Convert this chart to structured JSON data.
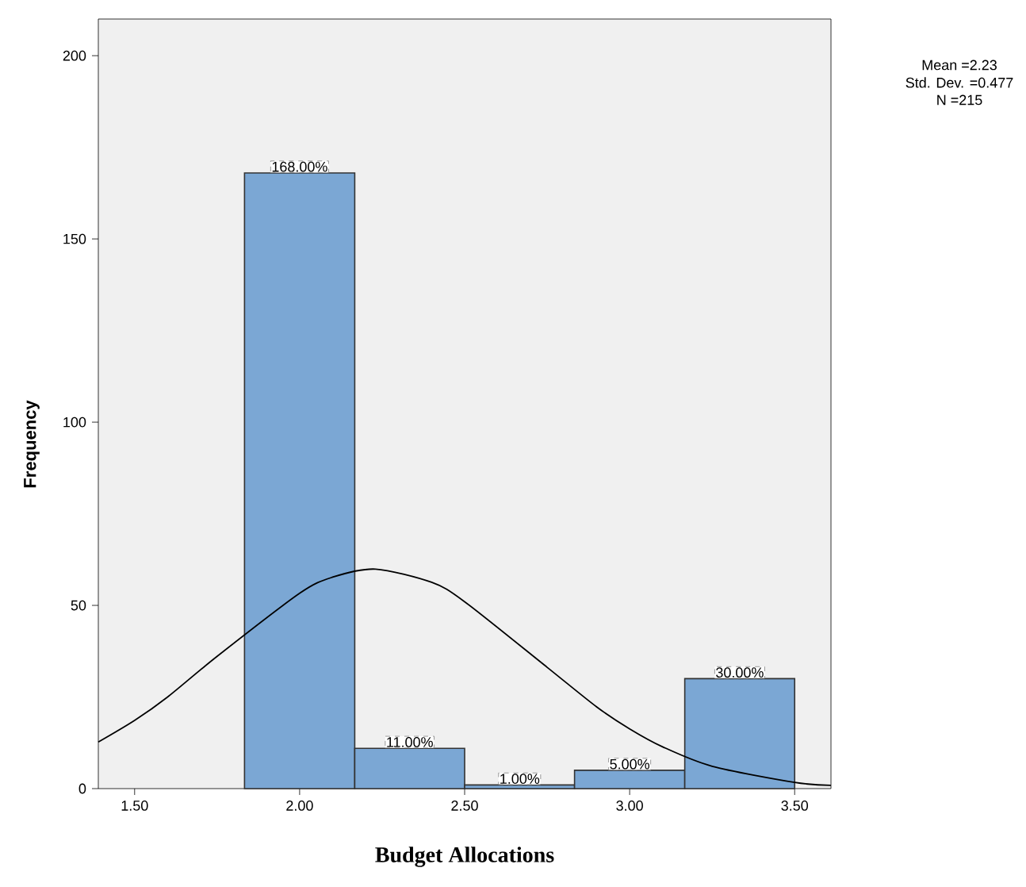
{
  "chart_data": {
    "type": "histogram",
    "xlabel": "Budget Allocations",
    "ylabel": "Frequency",
    "bins": [
      1.833,
      2.167,
      2.5,
      2.833,
      3.167,
      3.5
    ],
    "values": [
      168,
      11,
      1,
      5,
      30
    ],
    "value_labels": [
      "168.00%",
      "11.00%",
      "1.00%",
      "5.00%",
      "30.00%"
    ],
    "color": "#7ba7d4",
    "series": [
      {
        "type": "line",
        "color": "#000000",
        "x": [
          1.39,
          1.5,
          1.6,
          1.75,
          2.0,
          2.1,
          2.23,
          2.4,
          2.5,
          2.75,
          2.9,
          3.0,
          3.1,
          3.25,
          3.5,
          3.61
        ],
        "values": [
          12.7,
          18.6,
          25.0,
          36.1,
          53.3,
          57.7,
          59.9,
          56.3,
          51.0,
          33.1,
          22.3,
          16.3,
          11.4,
          6.1,
          1.7,
          0.9
        ]
      }
    ],
    "xlim": [
      1.39,
      3.61
    ],
    "ylim": [
      0,
      210
    ],
    "xticks": [
      {
        "value": 1.5,
        "label": "1.50"
      },
      {
        "value": 2.0,
        "label": "2.00"
      },
      {
        "value": 2.5,
        "label": "2.50"
      },
      {
        "value": 3.0,
        "label": "3.00"
      },
      {
        "value": 3.5,
        "label": "3.50"
      }
    ],
    "yticks": [
      0,
      50,
      100,
      150,
      200
    ],
    "annotations": [
      "Mean =2.23",
      "Std. Dev. =0.477",
      "N =215"
    ]
  }
}
